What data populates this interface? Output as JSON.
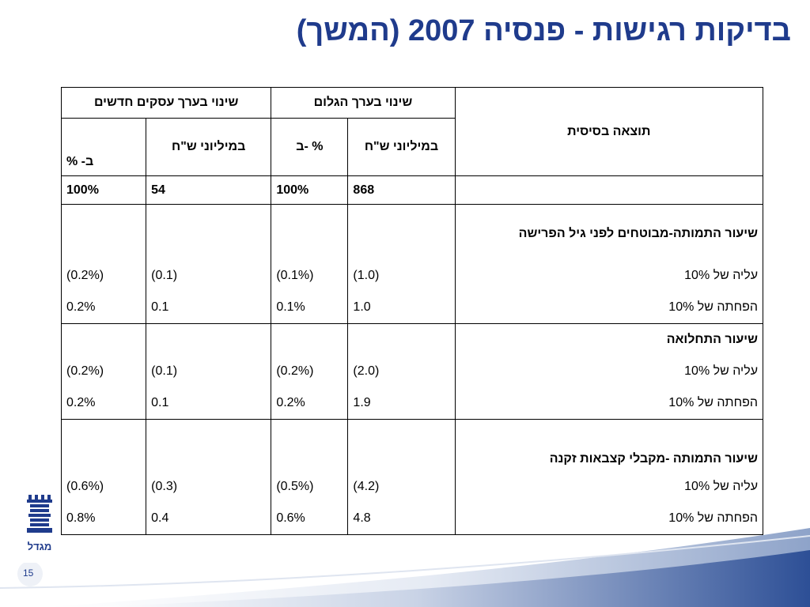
{
  "title": "בדיקות רגישות - פנסיה 2007 (המשך)",
  "table": {
    "basic_result_label": "תוצאה בסיסית",
    "group_embedded": "שינוי בערך הגלום",
    "group_new": "שינוי בערך עסקים חדשים",
    "col_millions_embedded": "במיליוני ש\"ח",
    "col_pct": "ב- %",
    "col_millions_new": "במיליוני ש\"ח",
    "base": {
      "embedded_millions": "868",
      "embedded_pct": "100%",
      "new_millions": "54",
      "new_pct": "100%"
    },
    "sections": [
      {
        "heading": "שיעור התמותה-מבוטחים לפני גיל הפרישה",
        "rows": [
          {
            "label": "עליה של 10%",
            "v1": "(1.0)",
            "v2": "(0.1%)",
            "v3": "(0.1)",
            "v4": "(0.2%)"
          },
          {
            "label": "הפחתה של 10%",
            "v1": "1.0",
            "v2": "0.1%",
            "v3": "0.1",
            "v4": "0.2%"
          }
        ]
      },
      {
        "heading": "שיעור התחלואה",
        "rows": [
          {
            "label": "עליה של 10%",
            "v1": "(2.0)",
            "v2": "(0.2%)",
            "v3": "(0.1)",
            "v4": "(0.2%)"
          },
          {
            "label": "הפחתה של 10%",
            "v1": "1.9",
            "v2": "0.2%",
            "v3": "0.1",
            "v4": "0.2%"
          }
        ]
      },
      {
        "heading": "שיעור התמותה -מקבלי קצבאות זקנה",
        "rows": [
          {
            "label": "עליה של 10%",
            "v1": "(4.2)",
            "v2": "(0.5%)",
            "v3": "(0.3)",
            "v4": "(0.6%)"
          },
          {
            "label": "הפחתה של 10%",
            "v1": "4.8",
            "v2": "0.6%",
            "v3": "0.4",
            "v4": "0.8%"
          }
        ]
      }
    ]
  },
  "logo": {
    "text": "מגדל"
  },
  "page_number": "15",
  "colors": {
    "title": "#1f3b8c",
    "brand": "#1f3b8c"
  }
}
